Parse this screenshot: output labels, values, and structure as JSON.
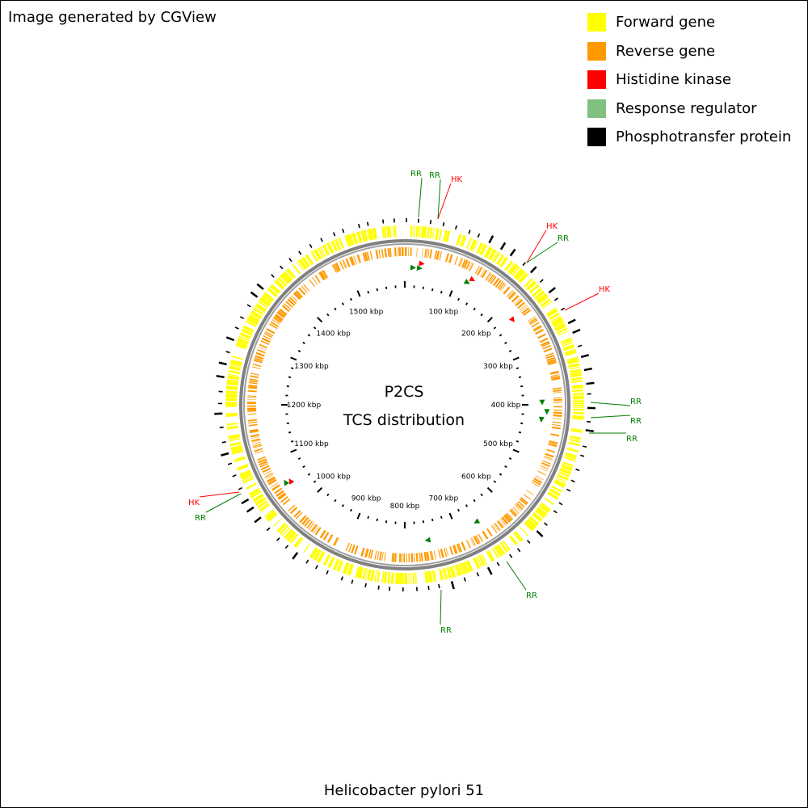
{
  "header": {
    "credit": "Image generated by CGView"
  },
  "legend": {
    "items": [
      {
        "label": "Forward gene",
        "color": "#ffff00"
      },
      {
        "label": "Reverse gene",
        "color": "#ff9900"
      },
      {
        "label": "Histidine kinase",
        "color": "#ff0000"
      },
      {
        "label": "Response regulator",
        "color": "#80c080"
      },
      {
        "label": "Phosphotransfer protein",
        "color": "#000000"
      }
    ]
  },
  "map": {
    "genome_length_kbp": 1600,
    "center_title": "P2CS",
    "center_subtitle": "TCS distribution",
    "tick_labels": [
      "100 kbp",
      "200 kbp",
      "300 kbp",
      "400 kbp",
      "500 kbp",
      "600 kbp",
      "700 kbp",
      "800 kbp",
      "900 kbp",
      "1000 kbp",
      "1100 kbp",
      "1200 kbp",
      "1300 kbp",
      "1400 kbp",
      "1500 kbp"
    ],
    "callouts": [
      {
        "label": "RR",
        "type": "RR",
        "position_kbp": 10
      },
      {
        "label": "RR",
        "type": "RR",
        "position_kbp": 30
      },
      {
        "label": "HK",
        "type": "HK",
        "position_kbp": 35
      },
      {
        "label": "HK",
        "type": "HK",
        "position_kbp": 160
      },
      {
        "label": "RR",
        "type": "RR",
        "position_kbp": 162
      },
      {
        "label": "HK",
        "type": "HK",
        "position_kbp": 250
      },
      {
        "label": "RR",
        "type": "RR",
        "position_kbp": 395
      },
      {
        "label": "RR",
        "type": "RR",
        "position_kbp": 415
      },
      {
        "label": "RR",
        "type": "RR",
        "position_kbp": 432
      },
      {
        "label": "RR",
        "type": "RR",
        "position_kbp": 650
      },
      {
        "label": "RR",
        "type": "RR",
        "position_kbp": 755
      },
      {
        "label": "HK",
        "type": "HK",
        "position_kbp": 1055
      },
      {
        "label": "RR",
        "type": "RR",
        "position_kbp": 1057
      }
    ]
  },
  "footer": {
    "organism": "Helicobacter pylori 51"
  }
}
